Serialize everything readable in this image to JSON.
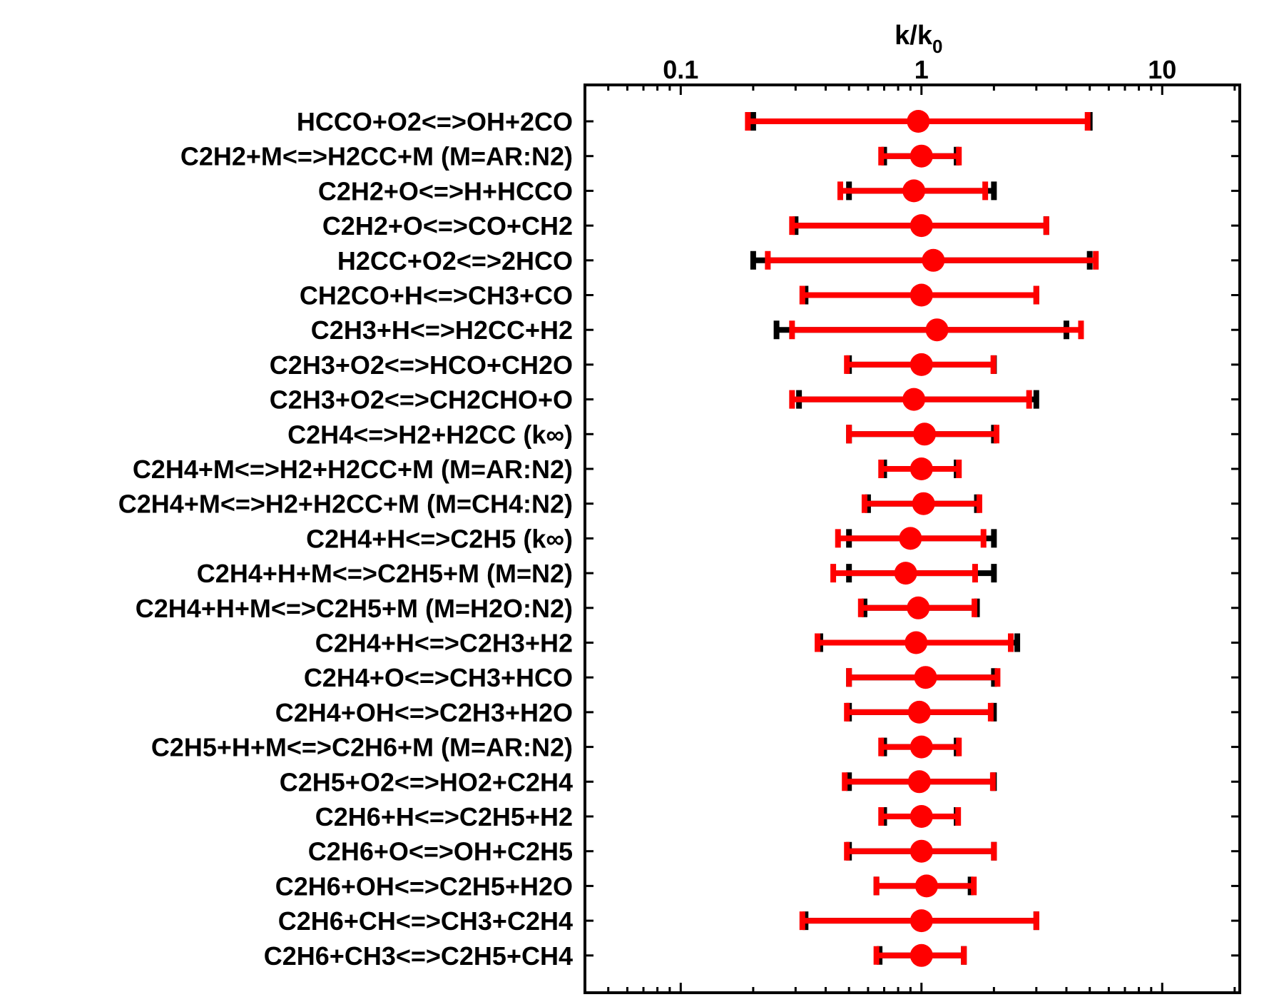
{
  "chart_data": {
    "type": "scatter",
    "subtype": "horizontal-error-bar",
    "x_scale": "log",
    "xlim": [
      0.04,
      21
    ],
    "xticks": [
      0.1,
      1,
      10
    ],
    "xtick_labels": [
      "0.1",
      "1",
      "10"
    ],
    "xlabel_main": "k/k",
    "xlabel_sub": "0",
    "xlabel_position": "top",
    "grid": false,
    "colors": {
      "primary": "#ff0000",
      "secondary": "#000000"
    },
    "categories": [
      "HCCO+O2<=>OH+2CO",
      "C2H2+M<=>H2CC+M (M=AR:N2)",
      "C2H2+O<=>H+HCCO",
      "C2H2+O<=>CO+CH2",
      "H2CC+O2<=>2HCO",
      "CH2CO+H<=>CH3+CO",
      "C2H3+H<=>H2CC+H2",
      "C2H3+O2<=>HCO+CH2O",
      "C2H3+O2<=>CH2CHO+O",
      "C2H4<=>H2+H2CC (k∞)",
      "C2H4+M<=>H2+H2CC+M (M=AR:N2)",
      "C2H4+M<=>H2+H2CC+M (M=CH4:N2)",
      "C2H4+H<=>C2H5 (k∞)",
      "C2H4+H+M<=>C2H5+M (M=N2)",
      "C2H4+H+M<=>C2H5+M (M=H2O:N2)",
      "C2H4+H<=>C2H3+H2",
      "C2H4+O<=>CH3+HCO",
      "C2H4+OH<=>C2H3+H2O",
      "C2H5+H+M<=>C2H6+M (M=AR:N2)",
      "C2H5+O2<=>HO2+C2H4",
      "C2H6+H<=>C2H5+H2",
      "C2H6+O<=>OH+C2H5",
      "C2H6+OH<=>C2H5+H2O",
      "C2H6+CH<=>CH3+C2H4",
      "C2H6+CH3<=>C2H5+CH4"
    ],
    "series": [
      {
        "color": "#000000",
        "lower": [
          0.2,
          0.7,
          0.5,
          0.3,
          0.2,
          0.33,
          0.25,
          0.5,
          0.31,
          0.5,
          0.7,
          0.6,
          0.5,
          0.5,
          0.58,
          0.38,
          0.5,
          0.5,
          0.7,
          0.5,
          0.7,
          0.5,
          0.65,
          0.33,
          0.67
        ],
        "upper": [
          5.0,
          1.4,
          2.0,
          3.3,
          5.0,
          3.0,
          4.0,
          2.0,
          3.0,
          2.0,
          1.4,
          1.7,
          2.0,
          2.0,
          1.7,
          2.5,
          2.0,
          2.0,
          1.4,
          2.0,
          1.4,
          2.0,
          1.6,
          3.0,
          1.5
        ]
      },
      {
        "color": "#ff0000",
        "center": [
          0.97,
          1.0,
          0.93,
          1.0,
          1.12,
          1.0,
          1.16,
          1.0,
          0.93,
          1.03,
          1.0,
          1.02,
          0.9,
          0.86,
          0.97,
          0.95,
          1.04,
          0.98,
          1.0,
          0.98,
          1.0,
          1.0,
          1.05,
          1.0,
          1.0
        ],
        "lower": [
          0.19,
          0.68,
          0.46,
          0.29,
          0.23,
          0.32,
          0.29,
          0.49,
          0.29,
          0.5,
          0.68,
          0.58,
          0.45,
          0.43,
          0.56,
          0.37,
          0.5,
          0.49,
          0.68,
          0.48,
          0.68,
          0.49,
          0.65,
          0.32,
          0.65
        ],
        "upper": [
          4.9,
          1.43,
          1.84,
          3.3,
          5.3,
          3.0,
          4.6,
          1.99,
          2.8,
          2.05,
          1.43,
          1.74,
          1.81,
          1.67,
          1.66,
          2.35,
          2.07,
          1.94,
          1.43,
          1.98,
          1.42,
          2.0,
          1.65,
          3.0,
          1.5
        ]
      }
    ]
  }
}
